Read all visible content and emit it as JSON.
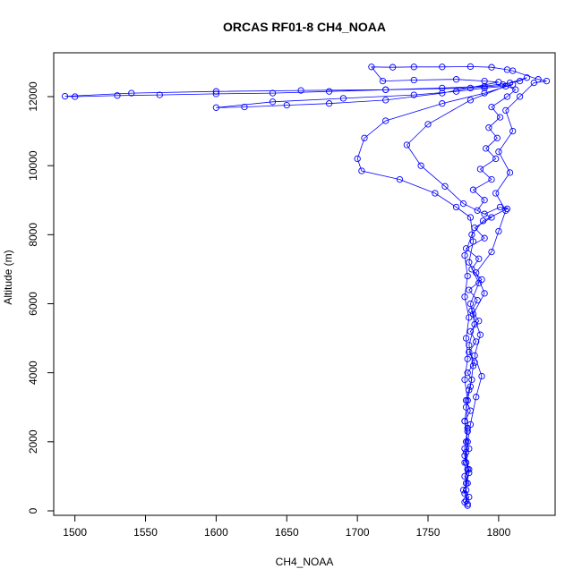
{
  "chart_data": {
    "type": "scatter",
    "title": "ORCAS RF01-8 CH4_NOAA",
    "xlabel": "CH4_NOAA",
    "ylabel": "Altitude (m)",
    "xlim": [
      1485,
      1840
    ],
    "ylim": [
      -130,
      13270
    ],
    "xticks": [
      1500,
      1550,
      1600,
      1650,
      1700,
      1750,
      1800
    ],
    "yticks": [
      0,
      2000,
      4000,
      6000,
      8000,
      10000,
      12000
    ],
    "grid": false,
    "legend": "none",
    "marker": "open-circle",
    "connected": true,
    "color": "#0000ff",
    "series": [
      {
        "values": [
          [
            1778,
            150
          ],
          [
            1776,
            250
          ],
          [
            1779,
            400
          ],
          [
            1775,
            600
          ],
          [
            1778,
            800
          ],
          [
            1776,
            1000
          ],
          [
            1779,
            1200
          ],
          [
            1777,
            1400
          ],
          [
            1776,
            1600
          ],
          [
            1779,
            1800
          ],
          [
            1777,
            2000
          ],
          [
            1778,
            2300
          ],
          [
            1776,
            2600
          ],
          [
            1780,
            2900
          ],
          [
            1777,
            3200
          ],
          [
            1779,
            3500
          ],
          [
            1781,
            3800
          ],
          [
            1778,
            4000
          ],
          [
            1783,
            4300
          ],
          [
            1779,
            4600
          ],
          [
            1784,
            4900
          ],
          [
            1780,
            5200
          ],
          [
            1786,
            5500
          ],
          [
            1781,
            5800
          ],
          [
            1785,
            6100
          ],
          [
            1779,
            6400
          ],
          [
            1788,
            6700
          ],
          [
            1781,
            7000
          ],
          [
            1786,
            7300
          ],
          [
            1777,
            7600
          ],
          [
            1790,
            7900
          ],
          [
            1783,
            8200
          ],
          [
            1795,
            8500
          ],
          [
            1785,
            8700
          ],
          [
            1790,
            9000
          ],
          [
            1782,
            9300
          ],
          [
            1795,
            9600
          ],
          [
            1787,
            9900
          ],
          [
            1798,
            10200
          ],
          [
            1791,
            10500
          ],
          [
            1799,
            10800
          ],
          [
            1793,
            11100
          ],
          [
            1801,
            11400
          ],
          [
            1795,
            11700
          ],
          [
            1806,
            12000
          ],
          [
            1812,
            12200
          ],
          [
            1803,
            12350
          ],
          [
            1815,
            12450
          ],
          [
            1820,
            12550
          ],
          [
            1808,
            12400
          ],
          [
            1790,
            12300
          ],
          [
            1760,
            12250
          ],
          [
            1720,
            12200
          ],
          [
            1680,
            12150
          ],
          [
            1640,
            12100
          ],
          [
            1600,
            12080
          ],
          [
            1560,
            12050
          ],
          [
            1530,
            12030
          ],
          [
            1500,
            12000
          ],
          [
            1493,
            12010
          ],
          [
            1540,
            12100
          ],
          [
            1600,
            12150
          ],
          [
            1660,
            12180
          ],
          [
            1720,
            12200
          ],
          [
            1780,
            12250
          ],
          [
            1810,
            12350
          ],
          [
            1790,
            12100
          ],
          [
            1760,
            11800
          ],
          [
            1720,
            11300
          ],
          [
            1705,
            10800
          ],
          [
            1700,
            10200
          ],
          [
            1703,
            9850
          ],
          [
            1730,
            9600
          ],
          [
            1755,
            9200
          ],
          [
            1770,
            8800
          ],
          [
            1780,
            8500
          ],
          [
            1782,
            7800
          ],
          [
            1779,
            7200
          ],
          [
            1786,
            6600
          ],
          [
            1780,
            6000
          ],
          [
            1783,
            5400
          ],
          [
            1779,
            4800
          ],
          [
            1782,
            4200
          ],
          [
            1780,
            3600
          ],
          [
            1777,
            3000
          ],
          [
            1778,
            2400
          ],
          [
            1776,
            1800
          ],
          [
            1778,
            1200
          ],
          [
            1777,
            600
          ],
          [
            1778,
            200
          ],
          [
            1776,
            500
          ],
          [
            1779,
            1100
          ],
          [
            1777,
            1700
          ],
          [
            1780,
            2500
          ],
          [
            1784,
            3300
          ],
          [
            1788,
            3900
          ],
          [
            1783,
            4500
          ],
          [
            1787,
            5100
          ],
          [
            1782,
            5700
          ],
          [
            1790,
            6300
          ],
          [
            1784,
            6900
          ],
          [
            1795,
            7500
          ],
          [
            1800,
            8100
          ],
          [
            1805,
            8700
          ],
          [
            1798,
            9200
          ],
          [
            1808,
            9800
          ],
          [
            1800,
            10400
          ],
          [
            1810,
            11000
          ],
          [
            1805,
            11600
          ],
          [
            1815,
            12000
          ],
          [
            1825,
            12400
          ],
          [
            1834,
            12450
          ],
          [
            1828,
            12500
          ],
          [
            1810,
            12750
          ],
          [
            1806,
            12780
          ],
          [
            1795,
            12850
          ],
          [
            1780,
            12870
          ],
          [
            1760,
            12860
          ],
          [
            1740,
            12860
          ],
          [
            1725,
            12850
          ],
          [
            1710,
            12860
          ],
          [
            1718,
            12450
          ],
          [
            1740,
            12480
          ],
          [
            1770,
            12500
          ],
          [
            1790,
            12450
          ],
          [
            1800,
            12420
          ],
          [
            1760,
            12100
          ],
          [
            1720,
            11900
          ],
          [
            1680,
            11800
          ],
          [
            1650,
            11750
          ],
          [
            1620,
            11700
          ],
          [
            1600,
            11680
          ],
          [
            1640,
            11850
          ],
          [
            1690,
            11950
          ],
          [
            1740,
            12050
          ],
          [
            1770,
            12150
          ],
          [
            1790,
            12250
          ],
          [
            1805,
            12300
          ],
          [
            1780,
            11900
          ],
          [
            1750,
            11200
          ],
          [
            1735,
            10600
          ],
          [
            1745,
            10000
          ],
          [
            1762,
            9400
          ],
          [
            1775,
            8900
          ],
          [
            1790,
            8600
          ],
          [
            1801,
            8800
          ],
          [
            1806,
            8750
          ],
          [
            1789,
            8400
          ],
          [
            1781,
            8000
          ],
          [
            1776,
            7400
          ],
          [
            1778,
            6800
          ],
          [
            1776,
            6200
          ],
          [
            1779,
            5600
          ],
          [
            1777,
            5000
          ],
          [
            1778,
            4400
          ],
          [
            1776,
            3800
          ],
          [
            1778,
            3200
          ],
          [
            1776,
            2600
          ],
          [
            1778,
            2000
          ],
          [
            1776,
            1400
          ],
          [
            1777,
            800
          ],
          [
            1777,
            300
          ]
        ]
      }
    ]
  }
}
